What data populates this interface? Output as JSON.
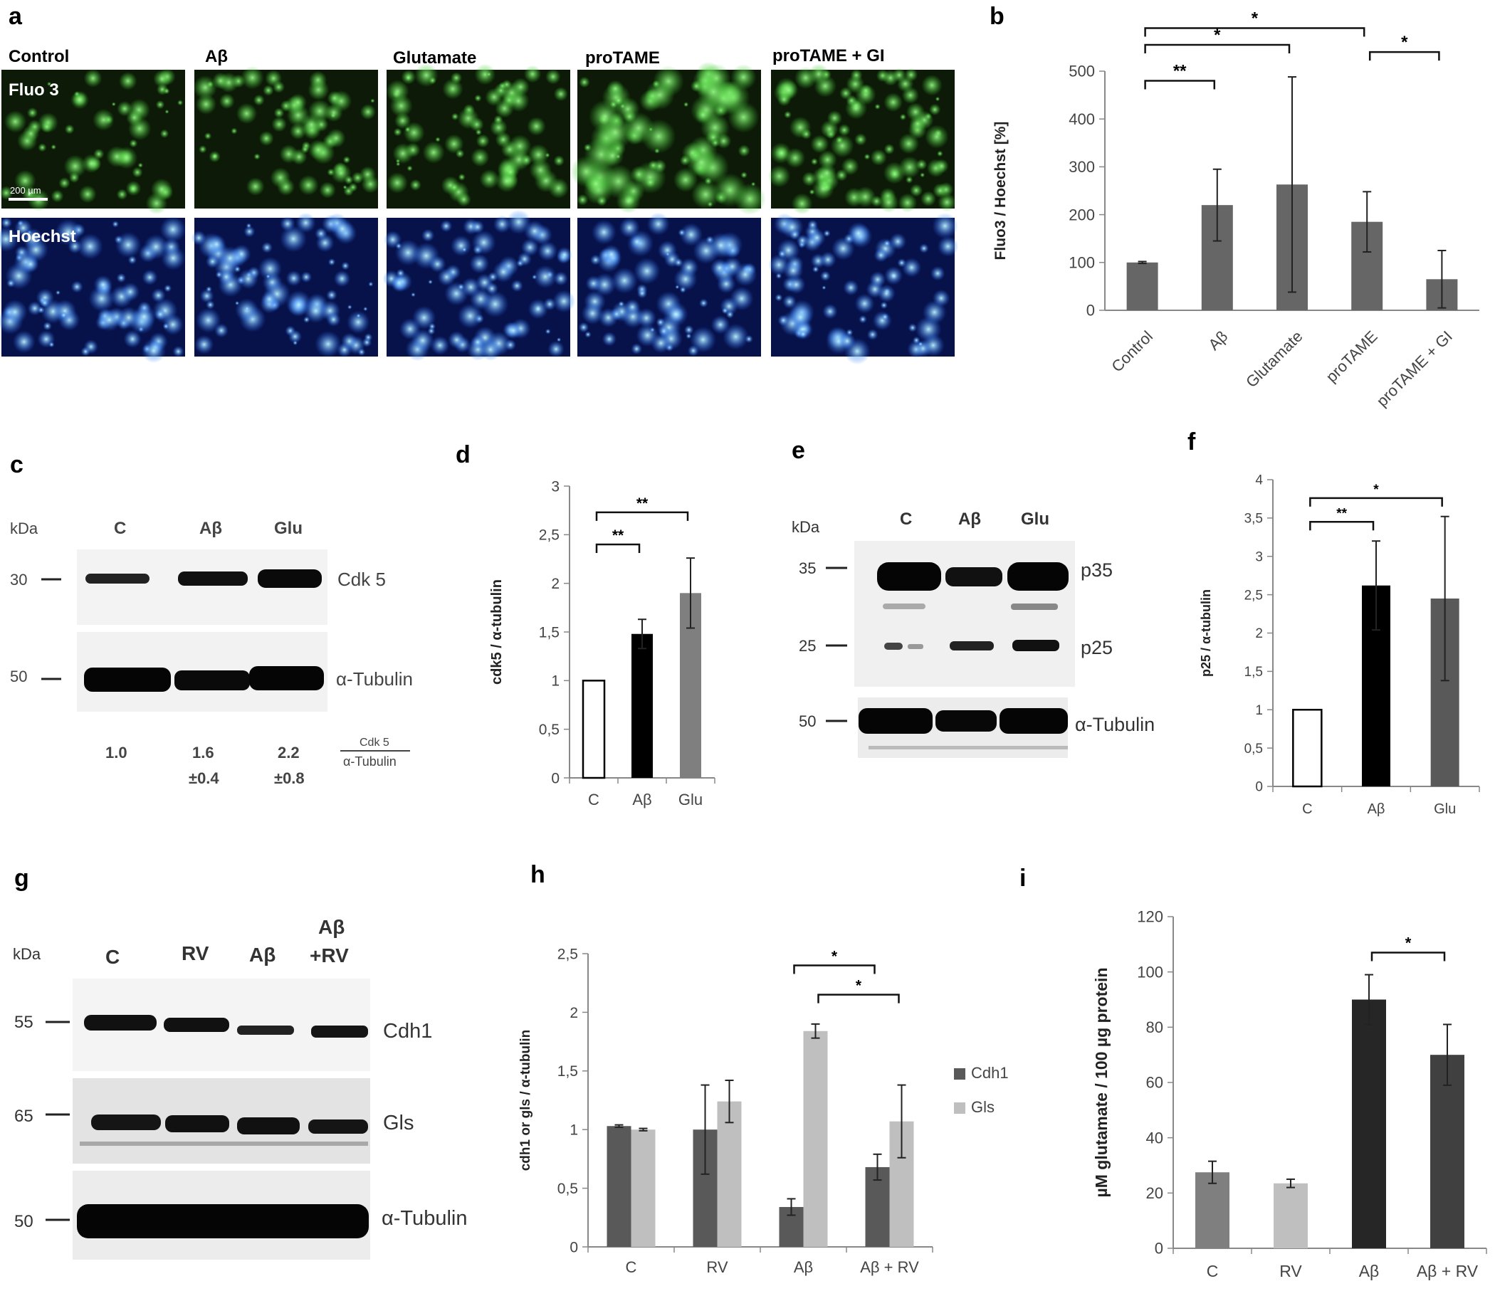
{
  "panels": {
    "a": "a",
    "b": "b",
    "c": "c",
    "d": "d",
    "e": "e",
    "f": "f",
    "g": "g",
    "h": "h",
    "i": "i"
  },
  "panel_a": {
    "conditions": [
      "Control",
      "Aβ",
      "Glutamate",
      "proTAME",
      "proTAME + GI"
    ],
    "row_labels": [
      "Fluo 3",
      "Hoechst"
    ],
    "scale_bar": "200 µm"
  },
  "kda": "kDa",
  "panel_c": {
    "lanes": [
      "C",
      "Aβ",
      "Glu"
    ],
    "markers": [
      "30",
      "50"
    ],
    "band_labels": [
      "Cdk 5",
      "α-Tubulin"
    ],
    "quant_means": [
      "1.0",
      "1.6",
      "2.2"
    ],
    "quant_sds": [
      "±0.4",
      "±0.8"
    ],
    "ratio_top": "Cdk 5",
    "ratio_bottom": "α-Tubulin"
  },
  "panel_e": {
    "lanes": [
      "C",
      "Aβ",
      "Glu"
    ],
    "markers": [
      "35",
      "25",
      "50"
    ],
    "band_labels": [
      "p35",
      "p25",
      "α-Tubulin"
    ]
  },
  "panel_g": {
    "lanes": [
      "C",
      "RV",
      "Aβ",
      "Aβ",
      "+RV"
    ],
    "markers": [
      "55",
      "65",
      "50"
    ],
    "band_labels": [
      "Cdh1",
      "Gls",
      "α-Tubulin"
    ]
  },
  "chart_data": [
    {
      "id": "b",
      "type": "bar",
      "categories": [
        "Control",
        "Aβ",
        "Glutamate",
        "proTAME",
        "proTAME + GI"
      ],
      "values": [
        100,
        220,
        263,
        185,
        65
      ],
      "errors": [
        2,
        75,
        225,
        63,
        60
      ],
      "ylabel": "Fluo3 / Hoechst [%]",
      "ylim": [
        0,
        500
      ],
      "yticks": [
        "0",
        "100",
        "200",
        "300",
        "400",
        "500"
      ],
      "colors": [
        "#666666"
      ],
      "significance": [
        {
          "from": 0,
          "to": 3,
          "label": "*"
        },
        {
          "from": 0,
          "to": 2,
          "label": "*"
        },
        {
          "from": 0,
          "to": 1,
          "label": "**"
        },
        {
          "from": 3,
          "to": 4,
          "label": "*"
        }
      ]
    },
    {
      "id": "d",
      "type": "bar",
      "categories": [
        "C",
        "Aβ",
        "Glu"
      ],
      "values": [
        1.0,
        1.48,
        1.9
      ],
      "errors": [
        0,
        0.15,
        0.36
      ],
      "ylabel": "cdk5 / α-tubulin",
      "ylim": [
        0,
        3
      ],
      "yticks": [
        "0",
        "0,5",
        "1",
        "1,5",
        "2",
        "2,5",
        "3"
      ],
      "colors": [
        "#ffffff",
        "#000000",
        "#7f7f7f"
      ],
      "significance": [
        {
          "from": 0,
          "to": 1,
          "label": "**"
        },
        {
          "from": 0,
          "to": 2,
          "label": "**"
        }
      ]
    },
    {
      "id": "f",
      "type": "bar",
      "categories": [
        "C",
        "Aβ",
        "Glu"
      ],
      "values": [
        1.0,
        2.62,
        2.45
      ],
      "errors": [
        0,
        0.58,
        1.07
      ],
      "ylabel": "p25 / α-tubulin",
      "ylim": [
        0,
        4
      ],
      "yticks": [
        "0",
        "0,5",
        "1",
        "1,5",
        "2",
        "2,5",
        "3",
        "3,5",
        "4"
      ],
      "colors": [
        "#ffffff",
        "#000000",
        "#595959"
      ],
      "significance": [
        {
          "from": 0,
          "to": 1,
          "label": "**"
        },
        {
          "from": 0,
          "to": 2,
          "label": "*"
        }
      ]
    },
    {
      "id": "h",
      "type": "bar",
      "categories": [
        "C",
        "RV",
        "Aβ",
        "Aβ + RV"
      ],
      "series": [
        {
          "name": "Cdh1",
          "values": [
            1.03,
            1.0,
            0.34,
            0.68
          ],
          "errors": [
            0.01,
            0.38,
            0.07,
            0.11
          ],
          "color": "#595959"
        },
        {
          "name": "Gls",
          "values": [
            1.0,
            1.24,
            1.84,
            1.07
          ],
          "errors": [
            0.01,
            0.18,
            0.06,
            0.31
          ],
          "color": "#bfbfbf"
        }
      ],
      "ylabel": "cdh1 or gls / α-tubulin",
      "ylim": [
        0,
        2.5
      ],
      "yticks": [
        "0",
        "0,5",
        "1",
        "1,5",
        "2",
        "2,5"
      ],
      "significance": [
        {
          "from": [
            2,
            0
          ],
          "to": [
            3,
            0
          ],
          "label": "*"
        },
        {
          "from": [
            2,
            1
          ],
          "to": [
            3,
            1
          ],
          "label": "*"
        }
      ]
    },
    {
      "id": "i",
      "type": "bar",
      "categories": [
        "C",
        "RV",
        "Aβ",
        "Aβ + RV"
      ],
      "values": [
        27.5,
        23.5,
        90,
        70
      ],
      "errors": [
        4,
        1.5,
        9,
        11
      ],
      "ylabel": "µM glutamate / 100 µg protein",
      "ylim": [
        0,
        120
      ],
      "yticks": [
        "0",
        "20",
        "40",
        "60",
        "80",
        "100",
        "120"
      ],
      "colors": [
        "#7f7f7f",
        "#bfbfbf",
        "#262626",
        "#404040"
      ],
      "significance": [
        {
          "from": 2,
          "to": 3,
          "label": "*"
        }
      ]
    }
  ]
}
